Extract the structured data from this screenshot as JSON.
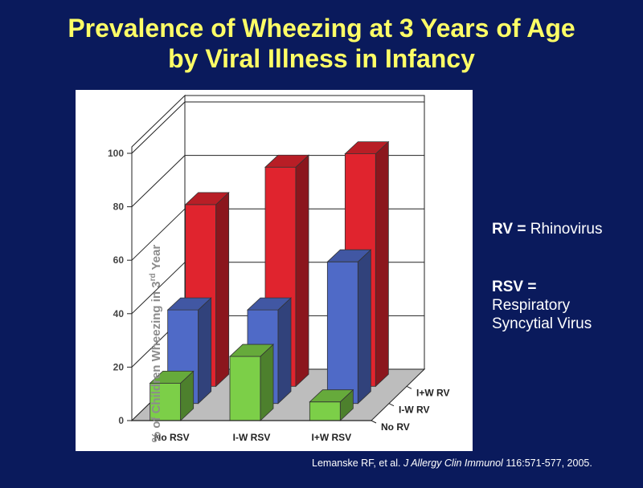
{
  "slide": {
    "title_line1": "Prevalence of Wheezing at 3 Years of Age",
    "title_line2": "by Viral Illness in Infancy"
  },
  "legend_notes": {
    "rv_abbr": "RV =",
    "rv_full": "Rhinovirus",
    "rsv_abbr": "RSV =",
    "rsv_full_1": "Respiratory",
    "rsv_full_2": "Syncytial Virus"
  },
  "citation": {
    "authors": "Lemanske RF, et al.",
    "journal": "J Allergy Clin Immunol",
    "details": "116:571-577, 2005."
  },
  "chart_data": {
    "type": "bar",
    "style": "3d-grouped",
    "ylabel_main": "% of Children Wheezing in 3",
    "ylabel_sup": "rd",
    "ylabel_end": " Year",
    "ylim": [
      0,
      100
    ],
    "yticks": [
      "0",
      "20",
      "40",
      "60",
      "80",
      "100"
    ],
    "categories": [
      "No RSV",
      "I-W RSV",
      "I+W RSV"
    ],
    "depth_labels": [
      "No RV",
      "I-W RV",
      "I+W RV"
    ],
    "series": [
      {
        "name": "No RV",
        "color": "#7ccf48",
        "values": [
          14,
          24,
          7
        ]
      },
      {
        "name": "I-W RV",
        "color": "#4f6ac7",
        "values": [
          35,
          35,
          53
        ]
      },
      {
        "name": "I+W RV",
        "color": "#e0242e",
        "values": [
          68,
          82,
          87
        ]
      }
    ],
    "grid": true
  }
}
